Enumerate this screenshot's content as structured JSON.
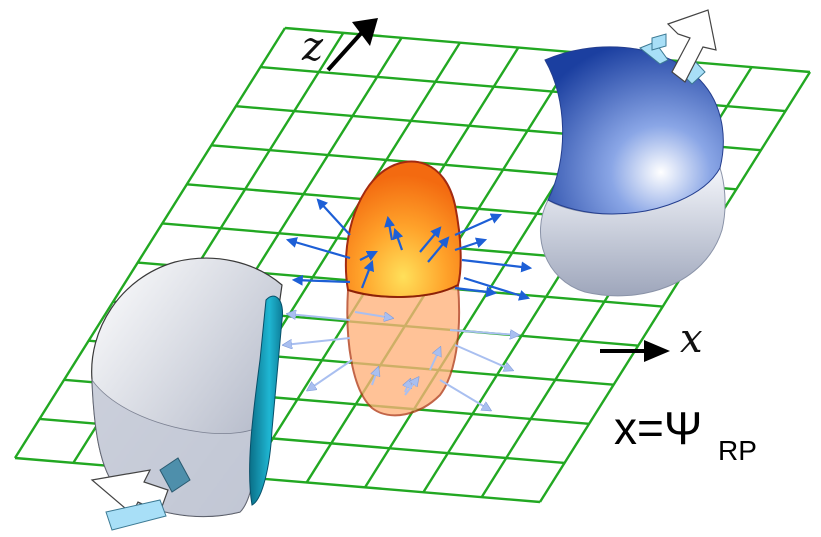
{
  "axes": {
    "z_label": "z",
    "x_label": "x"
  },
  "equation": {
    "lhs": "x=",
    "psi": "Ψ",
    "subscript": "RP"
  },
  "colors": {
    "grid": "#22a822",
    "almond_fill": "#ff8a1e",
    "almond_edge": "#a32a10",
    "flow_arrow_front": "#1d5fd6",
    "flow_arrow_back": "#a9bff0",
    "upper_nucleus": "#1f4fb0",
    "lower_nucleus_band": "#1296b4",
    "direction_arrow": "#a8dff7"
  },
  "icons": {
    "z_axis": "arrow-up-right-icon",
    "x_axis": "arrow-right-icon"
  }
}
